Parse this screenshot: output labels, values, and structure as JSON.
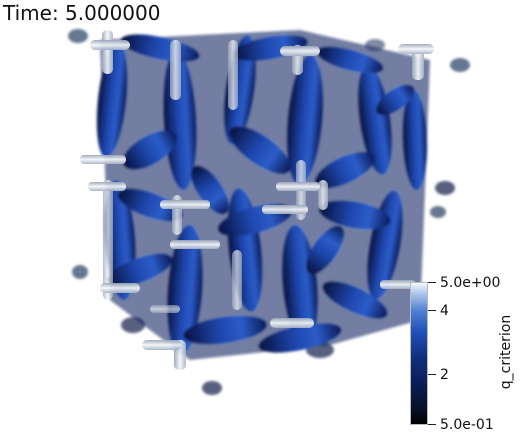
{
  "time_annotation": "Time: 5.000000",
  "colorbar": {
    "title": "q_criterion",
    "ticks": [
      {
        "label": "5.0e+00",
        "value": 5.0
      },
      {
        "label": "4",
        "value": 4
      },
      {
        "label": "2",
        "value": 2
      },
      {
        "label": "5.0e-01",
        "value": 0.5
      }
    ],
    "range": [
      0.5,
      5.0
    ],
    "colors": [
      "#000000",
      "#0b1f5a",
      "#2050b8",
      "#f6f9ff"
    ]
  },
  "render": {
    "description_colors": {
      "vortex_dark": "#0a1a5a",
      "vortex_mid": "#1f48b0",
      "vortex_light": "#e8eef8"
    }
  }
}
